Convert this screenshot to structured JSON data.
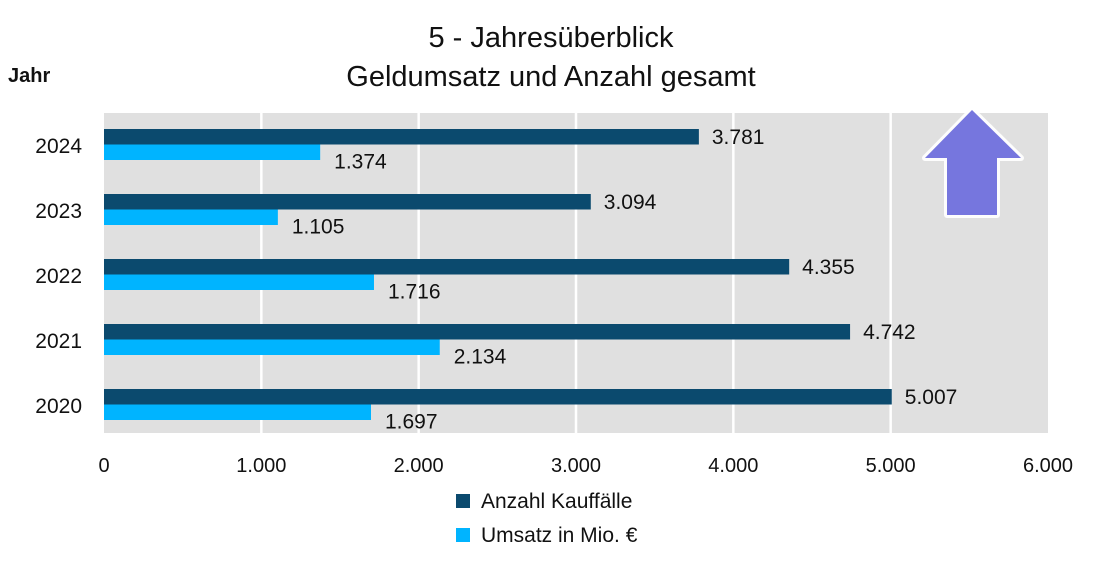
{
  "chart_data": {
    "type": "bar",
    "orientation": "horizontal",
    "title": [
      "5 - Jahresüberblick",
      "Geldumsatz und Anzahl gesamt"
    ],
    "ylabel": "Jahr",
    "xlabel": "",
    "categories": [
      "2024",
      "2023",
      "2022",
      "2021",
      "2020"
    ],
    "series": [
      {
        "name": "Anzahl Kauffälle",
        "color": "#0b4a6e",
        "values": [
          3781,
          3094,
          4355,
          4742,
          5007
        ],
        "labels": [
          "3.781",
          "3.094",
          "4.355",
          "4.742",
          "5.007"
        ]
      },
      {
        "name": "Umsatz in Mio. €",
        "color": "#00b4ff",
        "values": [
          1374,
          1105,
          1716,
          2134,
          1697
        ],
        "labels": [
          "1.374",
          "1.105",
          "1.716",
          "2.134",
          "1.697"
        ]
      }
    ],
    "xlim": [
      0,
      6000
    ],
    "xticks": [
      0,
      1000,
      2000,
      3000,
      4000,
      5000,
      6000
    ],
    "xtick_labels": [
      "0",
      "1.000",
      "2.000",
      "3.000",
      "4.000",
      "5.000",
      "6.000"
    ],
    "grid": true,
    "legend_position": "bottom",
    "annotation": {
      "icon": "up-arrow-icon",
      "color": "#7676de"
    },
    "plot_background": "#e0e0e0"
  }
}
